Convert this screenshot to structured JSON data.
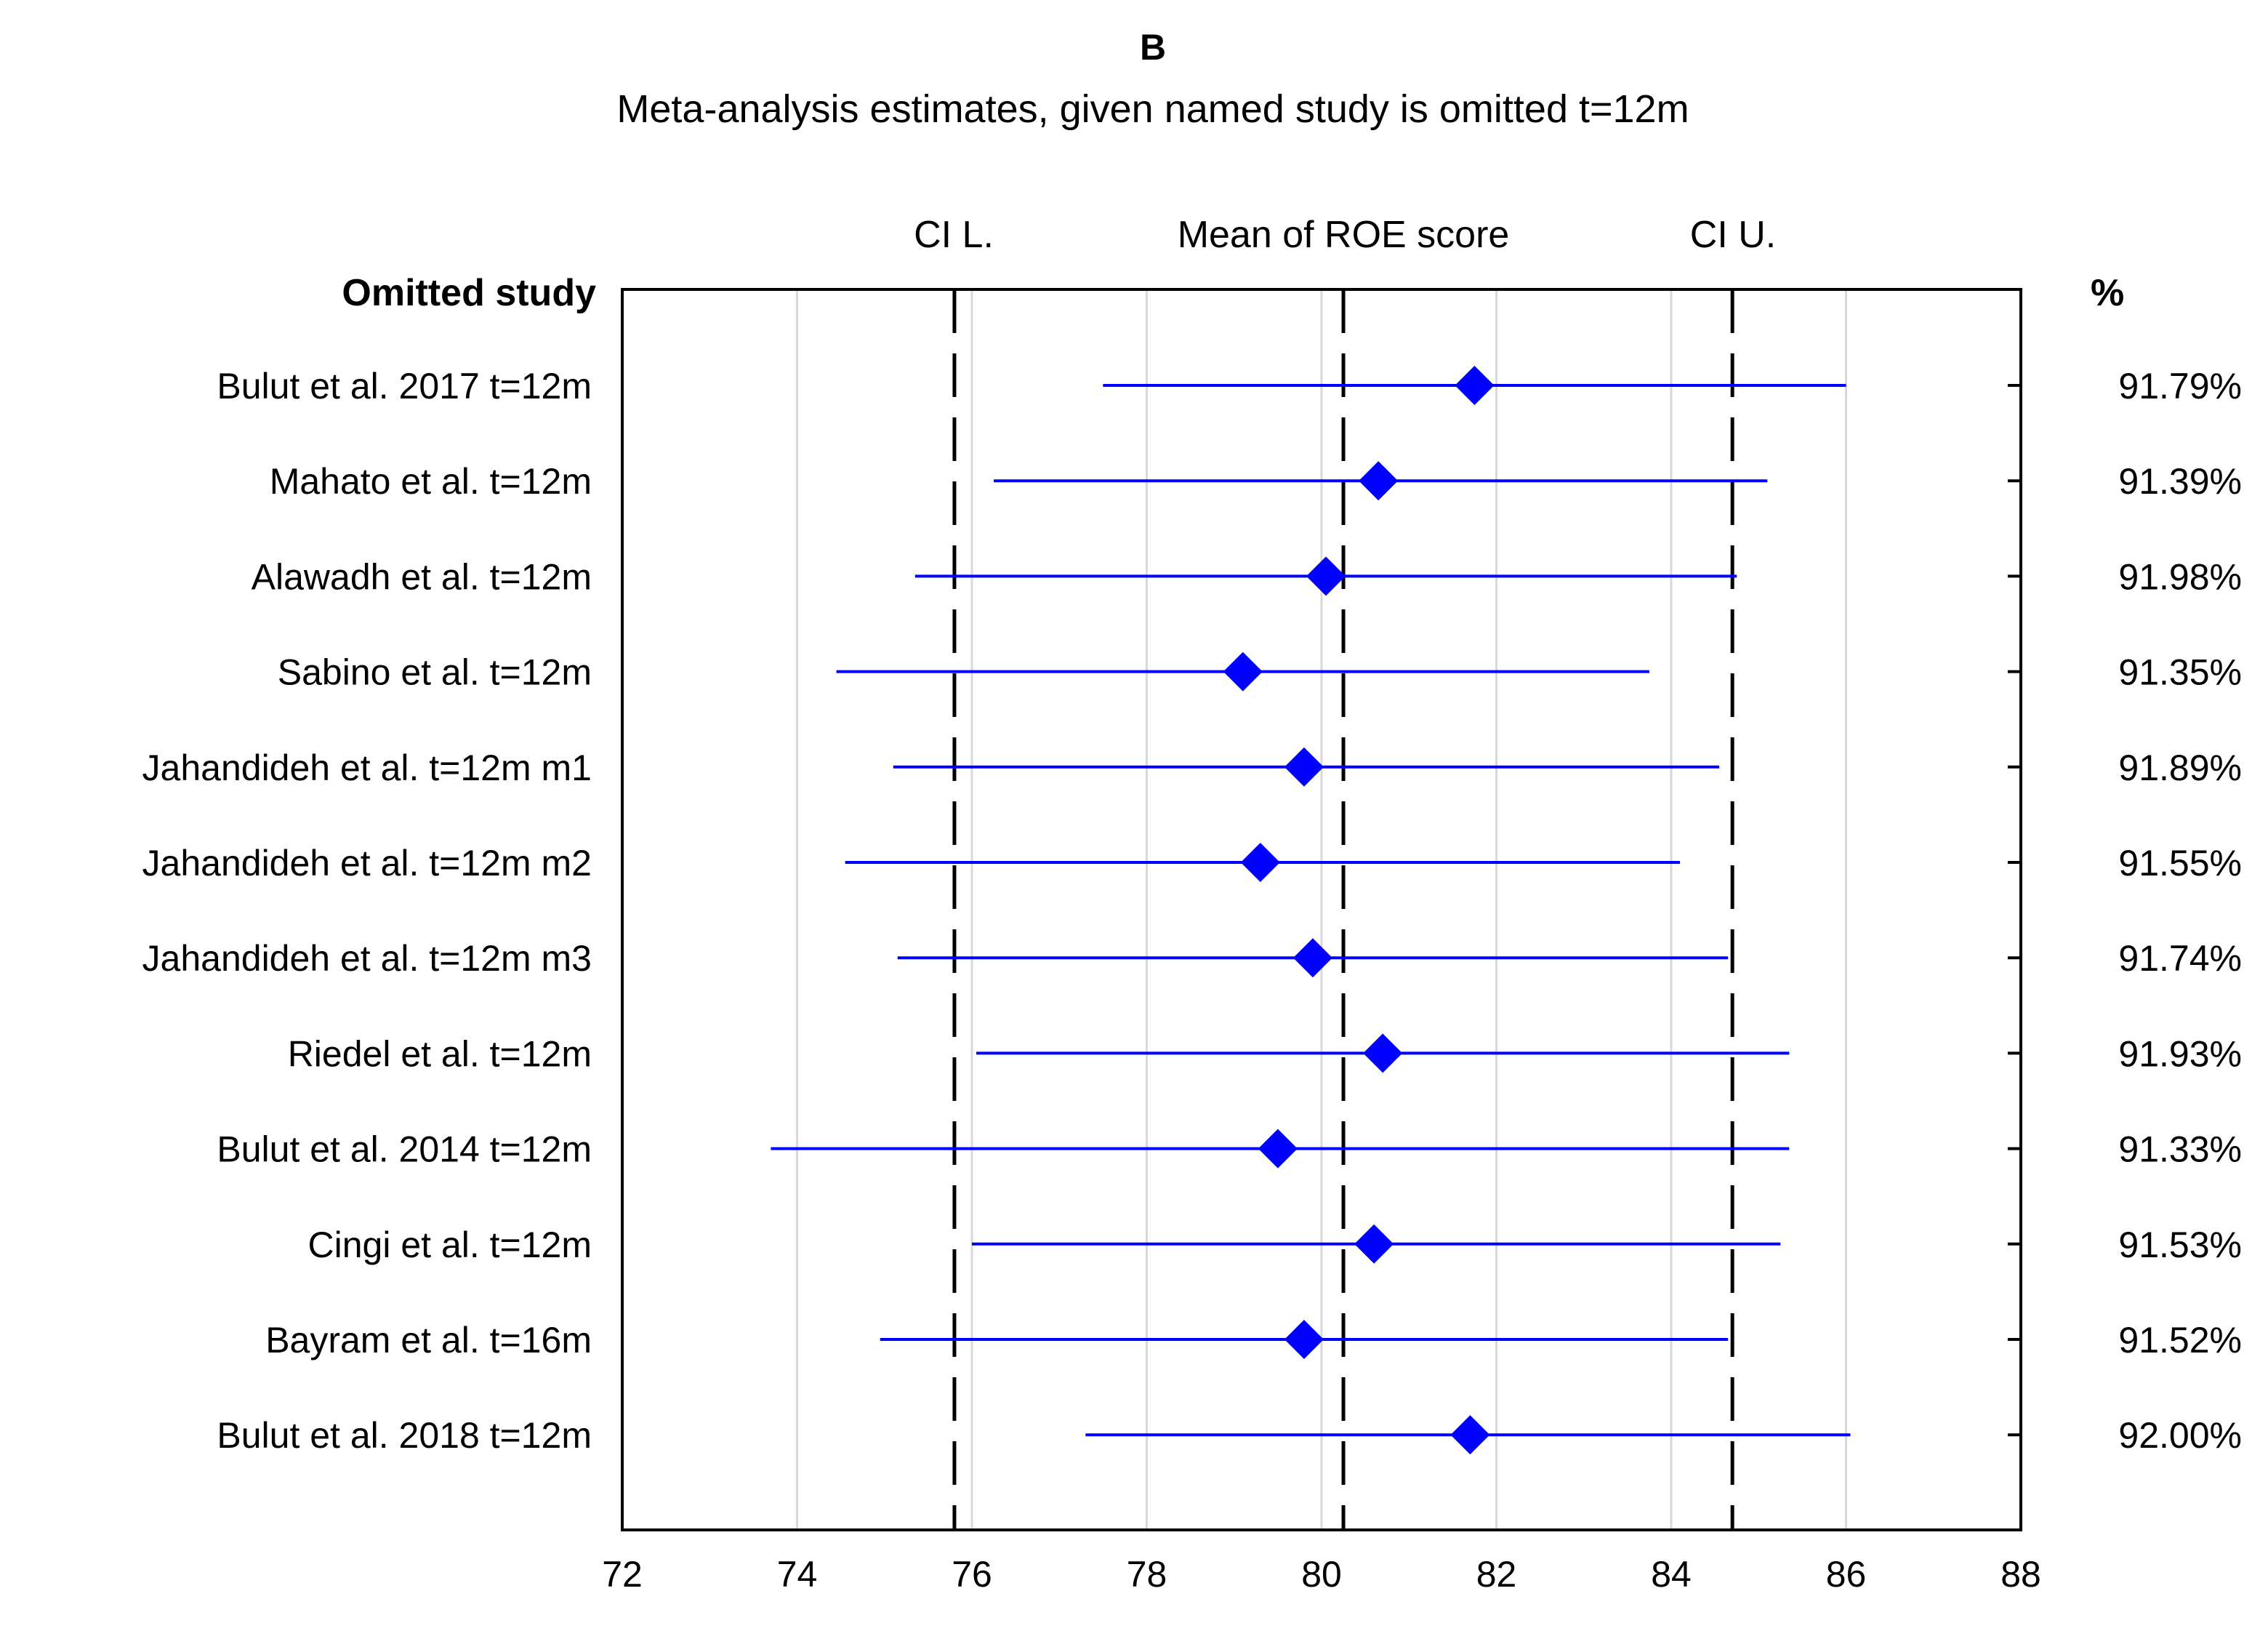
{
  "chart_data": {
    "type": "forest",
    "panel_label": "B",
    "title": "Meta-analysis estimates, given named study is omitted t=12m",
    "header_labels": {
      "ci_lower": "CI L.",
      "mean": "Mean of ROE score",
      "ci_upper": "CI U."
    },
    "left_header": "Omitted study",
    "right_header": "%",
    "xlim": [
      72,
      88
    ],
    "xticks": [
      "72",
      "74",
      "76",
      "78",
      "80",
      "82",
      "84",
      "86",
      "88"
    ],
    "reference_lines": {
      "ci_lower": 75.8,
      "mean": 80.25,
      "ci_upper": 84.7
    },
    "studies": [
      {
        "label": "Bulut et al. 2017 t=12m",
        "mean": 81.75,
        "lower": 77.5,
        "upper": 86.0,
        "pct": "91.79%"
      },
      {
        "label": "Mahato et al. t=12m",
        "mean": 80.65,
        "lower": 76.25,
        "upper": 85.1,
        "pct": "91.39%"
      },
      {
        "label": "Alawadh et al. t=12m",
        "mean": 80.05,
        "lower": 75.35,
        "upper": 84.75,
        "pct": "91.98%"
      },
      {
        "label": "Sabino et al. t=12m",
        "mean": 79.1,
        "lower": 74.45,
        "upper": 83.75,
        "pct": "91.35%"
      },
      {
        "label": "Jahandideh et al. t=12m m1",
        "mean": 79.8,
        "lower": 75.1,
        "upper": 84.55,
        "pct": "91.89%"
      },
      {
        "label": "Jahandideh et al. t=12m m2",
        "mean": 79.3,
        "lower": 74.55,
        "upper": 84.1,
        "pct": "91.55%"
      },
      {
        "label": "Jahandideh et al. t=12m m3",
        "mean": 79.9,
        "lower": 75.15,
        "upper": 84.65,
        "pct": "91.74%"
      },
      {
        "label": "Riedel et al. t=12m",
        "mean": 80.7,
        "lower": 76.05,
        "upper": 85.35,
        "pct": "91.93%"
      },
      {
        "label": "Bulut et al. 2014 t=12m",
        "mean": 79.5,
        "lower": 73.7,
        "upper": 85.35,
        "pct": "91.33%"
      },
      {
        "label": "Cingi et al. t=12m",
        "mean": 80.6,
        "lower": 76.0,
        "upper": 85.25,
        "pct": "91.53%"
      },
      {
        "label": "Bayram et al. t=16m",
        "mean": 79.8,
        "lower": 74.95,
        "upper": 84.65,
        "pct": "91.52%"
      },
      {
        "label": "Bulut et al. 2018 t=12m",
        "mean": 81.7,
        "lower": 77.3,
        "upper": 86.05,
        "pct": "92.00%"
      }
    ],
    "colors": {
      "marker": "#0000ff",
      "whisker": "#0000ff",
      "gridline": "#d9d9d9",
      "reference": "#000000"
    }
  }
}
